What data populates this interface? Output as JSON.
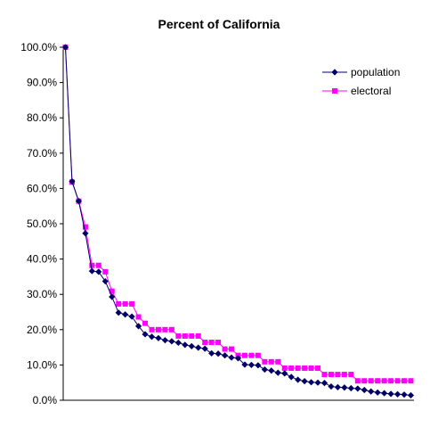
{
  "chart_data": {
    "type": "line",
    "title": "Percent of California",
    "xlabel": "",
    "ylabel": "",
    "ylim": [
      0,
      100
    ],
    "yticks": [
      "0.0%",
      "10.0%",
      "20.0%",
      "30.0%",
      "40.0%",
      "50.0%",
      "60.0%",
      "70.0%",
      "80.0%",
      "90.0%",
      "100.0%"
    ],
    "grid": false,
    "legend_position": "top-right",
    "series": [
      {
        "name": "population",
        "color": "#000066",
        "marker": "diamond",
        "values": [
          100.0,
          62.0,
          56.4,
          47.3,
          36.6,
          36.4,
          33.7,
          29.3,
          24.8,
          24.3,
          23.7,
          21.0,
          18.7,
          18.0,
          17.6,
          17.0,
          16.7,
          16.3,
          15.7,
          15.3,
          14.9,
          14.6,
          13.3,
          13.2,
          12.7,
          12.1,
          11.9,
          10.1,
          10.0,
          9.9,
          8.7,
          8.4,
          7.8,
          7.6,
          6.6,
          5.8,
          5.4,
          5.1,
          5.0,
          4.9,
          3.9,
          3.7,
          3.6,
          3.4,
          3.3,
          2.9,
          2.5,
          2.2,
          2.0,
          1.8,
          1.7,
          1.6,
          1.4
        ]
      },
      {
        "name": "electoral",
        "color": "#ff00ff",
        "marker": "square",
        "values": [
          100.0,
          61.8,
          56.4,
          49.1,
          38.2,
          38.2,
          36.4,
          30.9,
          27.3,
          27.3,
          27.3,
          23.6,
          21.8,
          20.0,
          20.0,
          20.0,
          20.0,
          18.2,
          18.2,
          18.2,
          18.2,
          16.4,
          16.4,
          16.4,
          14.5,
          14.5,
          12.7,
          12.7,
          12.7,
          12.7,
          10.9,
          10.9,
          10.9,
          9.1,
          9.1,
          9.1,
          9.1,
          9.1,
          9.1,
          7.3,
          7.3,
          7.3,
          7.3,
          7.3,
          5.5,
          5.5,
          5.5,
          5.5,
          5.5,
          5.5,
          5.5,
          5.5,
          5.5
        ]
      }
    ]
  }
}
